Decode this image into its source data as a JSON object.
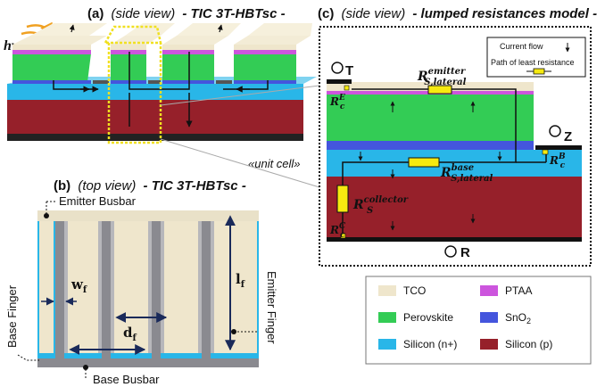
{
  "panel_a": {
    "title_prefix": "(a)",
    "title_view": "(side view)",
    "title_name": "- TIC 3T-HBTsc -",
    "light_label": "hν",
    "unit_cell_label": "«unit cell»"
  },
  "panel_b": {
    "title_prefix": "(b)",
    "title_view": "(top view)",
    "title_name": "- TIC 3T-HBTsc -",
    "emitter_busbar": "Emitter Busbar",
    "base_busbar": "Base Busbar",
    "base_finger": "Base Finger",
    "emitter_finger": "Emitter Finger",
    "wf": "w",
    "wf_sub": "f",
    "df": "d",
    "df_sub": "f",
    "lf": "l",
    "lf_sub": "f"
  },
  "panel_c": {
    "title_prefix": "(c)",
    "title_view": "(side view)",
    "title_name": "- lumped resistances model -",
    "terminal_t": "T",
    "terminal_z": "Z",
    "terminal_r": "R",
    "legend_current": "Current flow",
    "legend_path": "Path of least resistance",
    "r_emitter_main": "R",
    "r_emitter_sub": "S,lateral",
    "r_emitter_sup": "emitter",
    "r_base_main": "R",
    "r_base_sub": "S,lateral",
    "r_base_sup": "base",
    "r_coll_main": "R",
    "r_coll_sub": "S",
    "r_coll_sup": "collector",
    "rc_e_main": "R",
    "rc_e_sub": "c",
    "rc_e_sup": "E",
    "rc_b_main": "R",
    "rc_b_sub": "c",
    "rc_b_sup": "B",
    "rc_c_main": "R",
    "rc_c_sub": "c",
    "rc_c_sup": "C"
  },
  "legend": [
    {
      "label": "TCO",
      "color": "#efe6cc"
    },
    {
      "label": "PTAA",
      "color": "#cc55dd"
    },
    {
      "label": "Perovskite",
      "color": "#33cc55"
    },
    {
      "label": "SnO",
      "sub": "2",
      "color": "#4455dd"
    },
    {
      "label": "Silicon (n+)",
      "color": "#29b6e8"
    },
    {
      "label": "Silicon (p)",
      "color": "#96202a"
    }
  ]
}
